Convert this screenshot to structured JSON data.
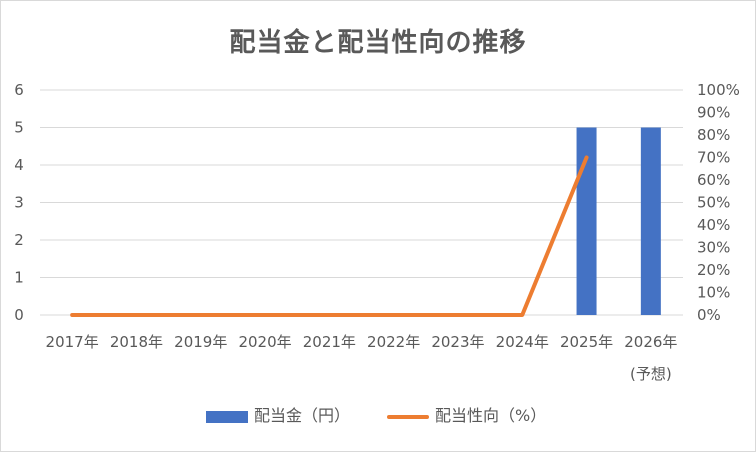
{
  "chart_data": {
    "type": "bar+line",
    "title": "配当金と配当性向の推移",
    "categories": [
      "2017年",
      "2018年",
      "2019年",
      "2020年",
      "2021年",
      "2022年",
      "2023年",
      "2024年",
      "2025年",
      "2026年"
    ],
    "category_sublabels": [
      "",
      "",
      "",
      "",
      "",
      "",
      "",
      "",
      "",
      "(予想)"
    ],
    "series": [
      {
        "name": "配当金（円）",
        "type": "bar",
        "axis": "left",
        "color": "#4472c4",
        "values": [
          0,
          0,
          0,
          0,
          0,
          0,
          0,
          0,
          5,
          5
        ]
      },
      {
        "name": "配当性向（%）",
        "type": "line",
        "axis": "right",
        "color": "#ed7d31",
        "values": [
          0,
          0,
          0,
          0,
          0,
          0,
          0,
          0,
          70,
          null
        ]
      }
    ],
    "y_left": {
      "min": 0,
      "max": 6,
      "ticks": [
        "0",
        "1",
        "2",
        "3",
        "4",
        "5",
        "6"
      ]
    },
    "y_right": {
      "min": 0,
      "max": 100,
      "ticks": [
        "0%",
        "10%",
        "20%",
        "30%",
        "40%",
        "50%",
        "60%",
        "70%",
        "80%",
        "90%",
        "100%"
      ]
    },
    "grid": true,
    "legend_position": "bottom"
  }
}
